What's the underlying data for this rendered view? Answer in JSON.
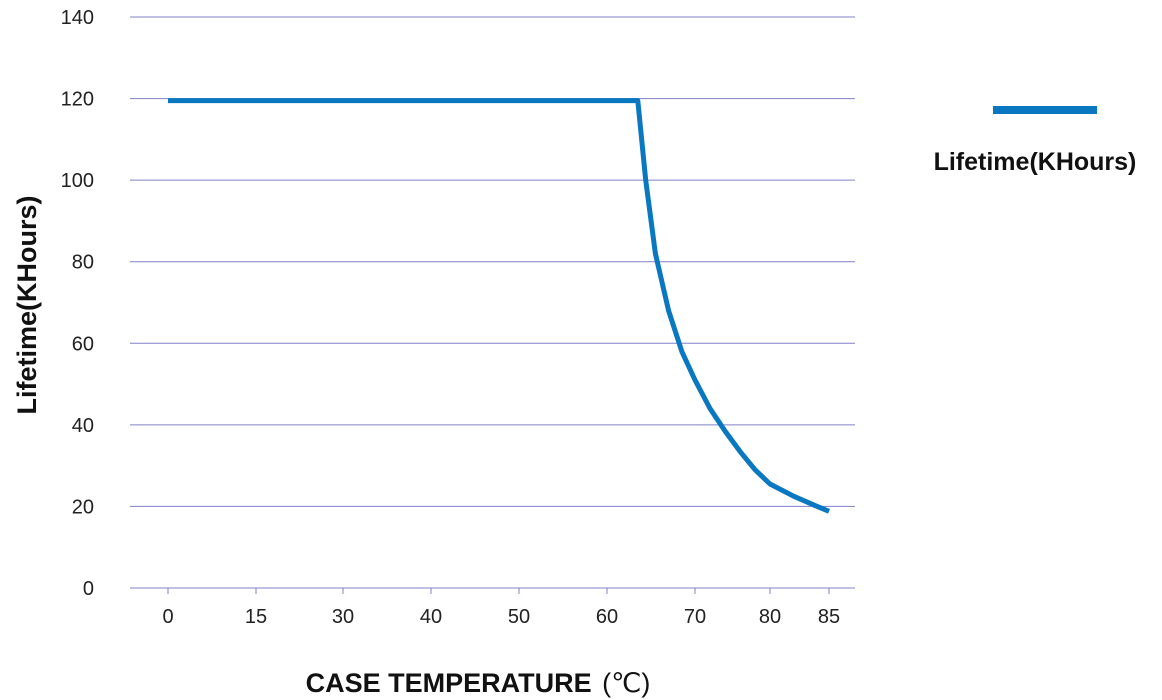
{
  "chart_data": {
    "type": "line",
    "xlabel": "CASE TEMPERATURE",
    "xlabel_unit": "(℃)",
    "ylabel": "Lifetime(KHours)",
    "x_ticks": [
      "0",
      "15",
      "30",
      "40",
      "50",
      "60",
      "70",
      "80",
      "85"
    ],
    "y_ticks": [
      "0",
      "20",
      "40",
      "60",
      "80",
      "100",
      "120",
      "140"
    ],
    "ylim": [
      0,
      140
    ],
    "grid": "horizontal",
    "legend_position": "right",
    "series": [
      {
        "name": "Lifetime(KHours)",
        "color": "#0a78c0",
        "points": [
          [
            0,
            119.5
          ],
          [
            63.5,
            119.5
          ],
          [
            64.4,
            100
          ],
          [
            65.5,
            82
          ],
          [
            67,
            68
          ],
          [
            68.5,
            58
          ],
          [
            70,
            51
          ],
          [
            72,
            44
          ],
          [
            74,
            38.5
          ],
          [
            76,
            33.5
          ],
          [
            78,
            29
          ],
          [
            80,
            25.5
          ],
          [
            82,
            22.5
          ],
          [
            84,
            20
          ],
          [
            85,
            18.8
          ]
        ]
      }
    ]
  }
}
